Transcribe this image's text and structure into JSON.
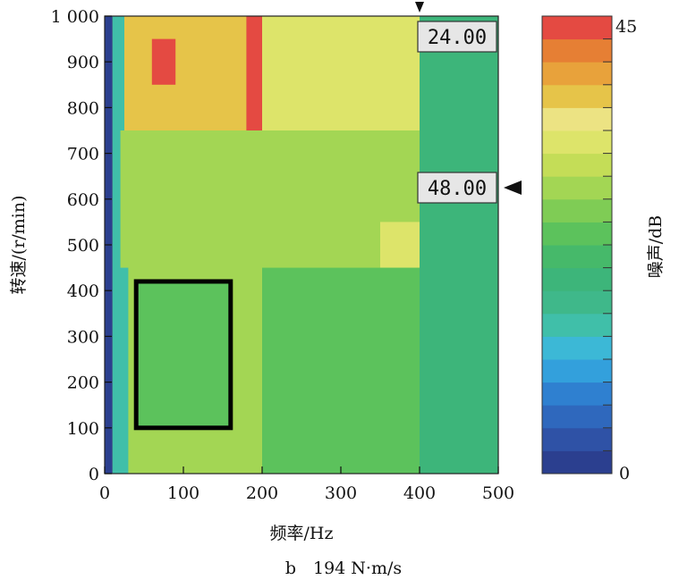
{
  "chart_data": {
    "type": "heatmap",
    "xlabel": "频率/Hz",
    "ylabel": "转速/(r/min)",
    "xlim": [
      0,
      500
    ],
    "ylim": [
      0,
      1000
    ],
    "x_ticks": [
      0,
      100,
      200,
      300,
      400,
      500
    ],
    "x_tick_labels": [
      "0",
      "100",
      "200",
      "300",
      "400",
      "500"
    ],
    "y_ticks": [
      0,
      100,
      200,
      300,
      400,
      500,
      600,
      700,
      800,
      900,
      1000
    ],
    "y_tick_labels": [
      "0",
      "100",
      "200",
      "300",
      "400",
      "500",
      "600",
      "700",
      "800",
      "900",
      "1 000"
    ],
    "colorbar": {
      "label": "噪声/dB",
      "min": 0,
      "max": 45,
      "tick_labels": [
        "0",
        "45"
      ],
      "levels": 20,
      "colors": [
        "#2b3f8f",
        "#2f52a6",
        "#2f68bd",
        "#2f80d0",
        "#33a0dc",
        "#3cb8d6",
        "#40bfa9",
        "#3fb88a",
        "#3db57a",
        "#46b96a",
        "#5cc25c",
        "#7fcc55",
        "#a3d654",
        "#c4dd57",
        "#dde46a",
        "#ece383",
        "#e6c449",
        "#e8a23b",
        "#e67f34",
        "#e44a42"
      ]
    },
    "markers": [
      {
        "label": "24.00",
        "x": 400,
        "y": 1000
      },
      {
        "label": "48.00",
        "x": 500,
        "y": 625
      }
    ],
    "highlight_box": {
      "x_range": [
        40,
        160
      ],
      "y_range": [
        100,
        420
      ]
    },
    "noise_regions": [
      {
        "x_range": [
          0,
          10
        ],
        "y_range": [
          0,
          1000
        ],
        "level_db": 2
      },
      {
        "x_range": [
          10,
          30
        ],
        "y_range": [
          0,
          1000
        ],
        "level_db": 14
      },
      {
        "x_range": [
          25,
          180
        ],
        "y_range": [
          700,
          1000
        ],
        "level_db": 38
      },
      {
        "x_range": [
          180,
          200
        ],
        "y_range": [
          750,
          1000
        ],
        "level_db": 44
      },
      {
        "x_range": [
          60,
          90
        ],
        "y_range": [
          850,
          950
        ],
        "level_db": 44
      },
      {
        "x_range": [
          200,
          400
        ],
        "y_range": [
          750,
          1000
        ],
        "level_db": 33
      },
      {
        "x_range": [
          20,
          400
        ],
        "y_range": [
          450,
          750
        ],
        "level_db": 29
      },
      {
        "x_range": [
          350,
          450
        ],
        "y_range": [
          450,
          550
        ],
        "level_db": 33
      },
      {
        "x_range": [
          400,
          500
        ],
        "y_range": [
          0,
          1000
        ],
        "level_db": 20
      },
      {
        "x_range": [
          200,
          400
        ],
        "y_range": [
          0,
          450
        ],
        "level_db": 24
      },
      {
        "x_range": [
          40,
          160
        ],
        "y_range": [
          100,
          420
        ],
        "level_db": 23
      }
    ],
    "caption": "b　194 N·m/s"
  }
}
